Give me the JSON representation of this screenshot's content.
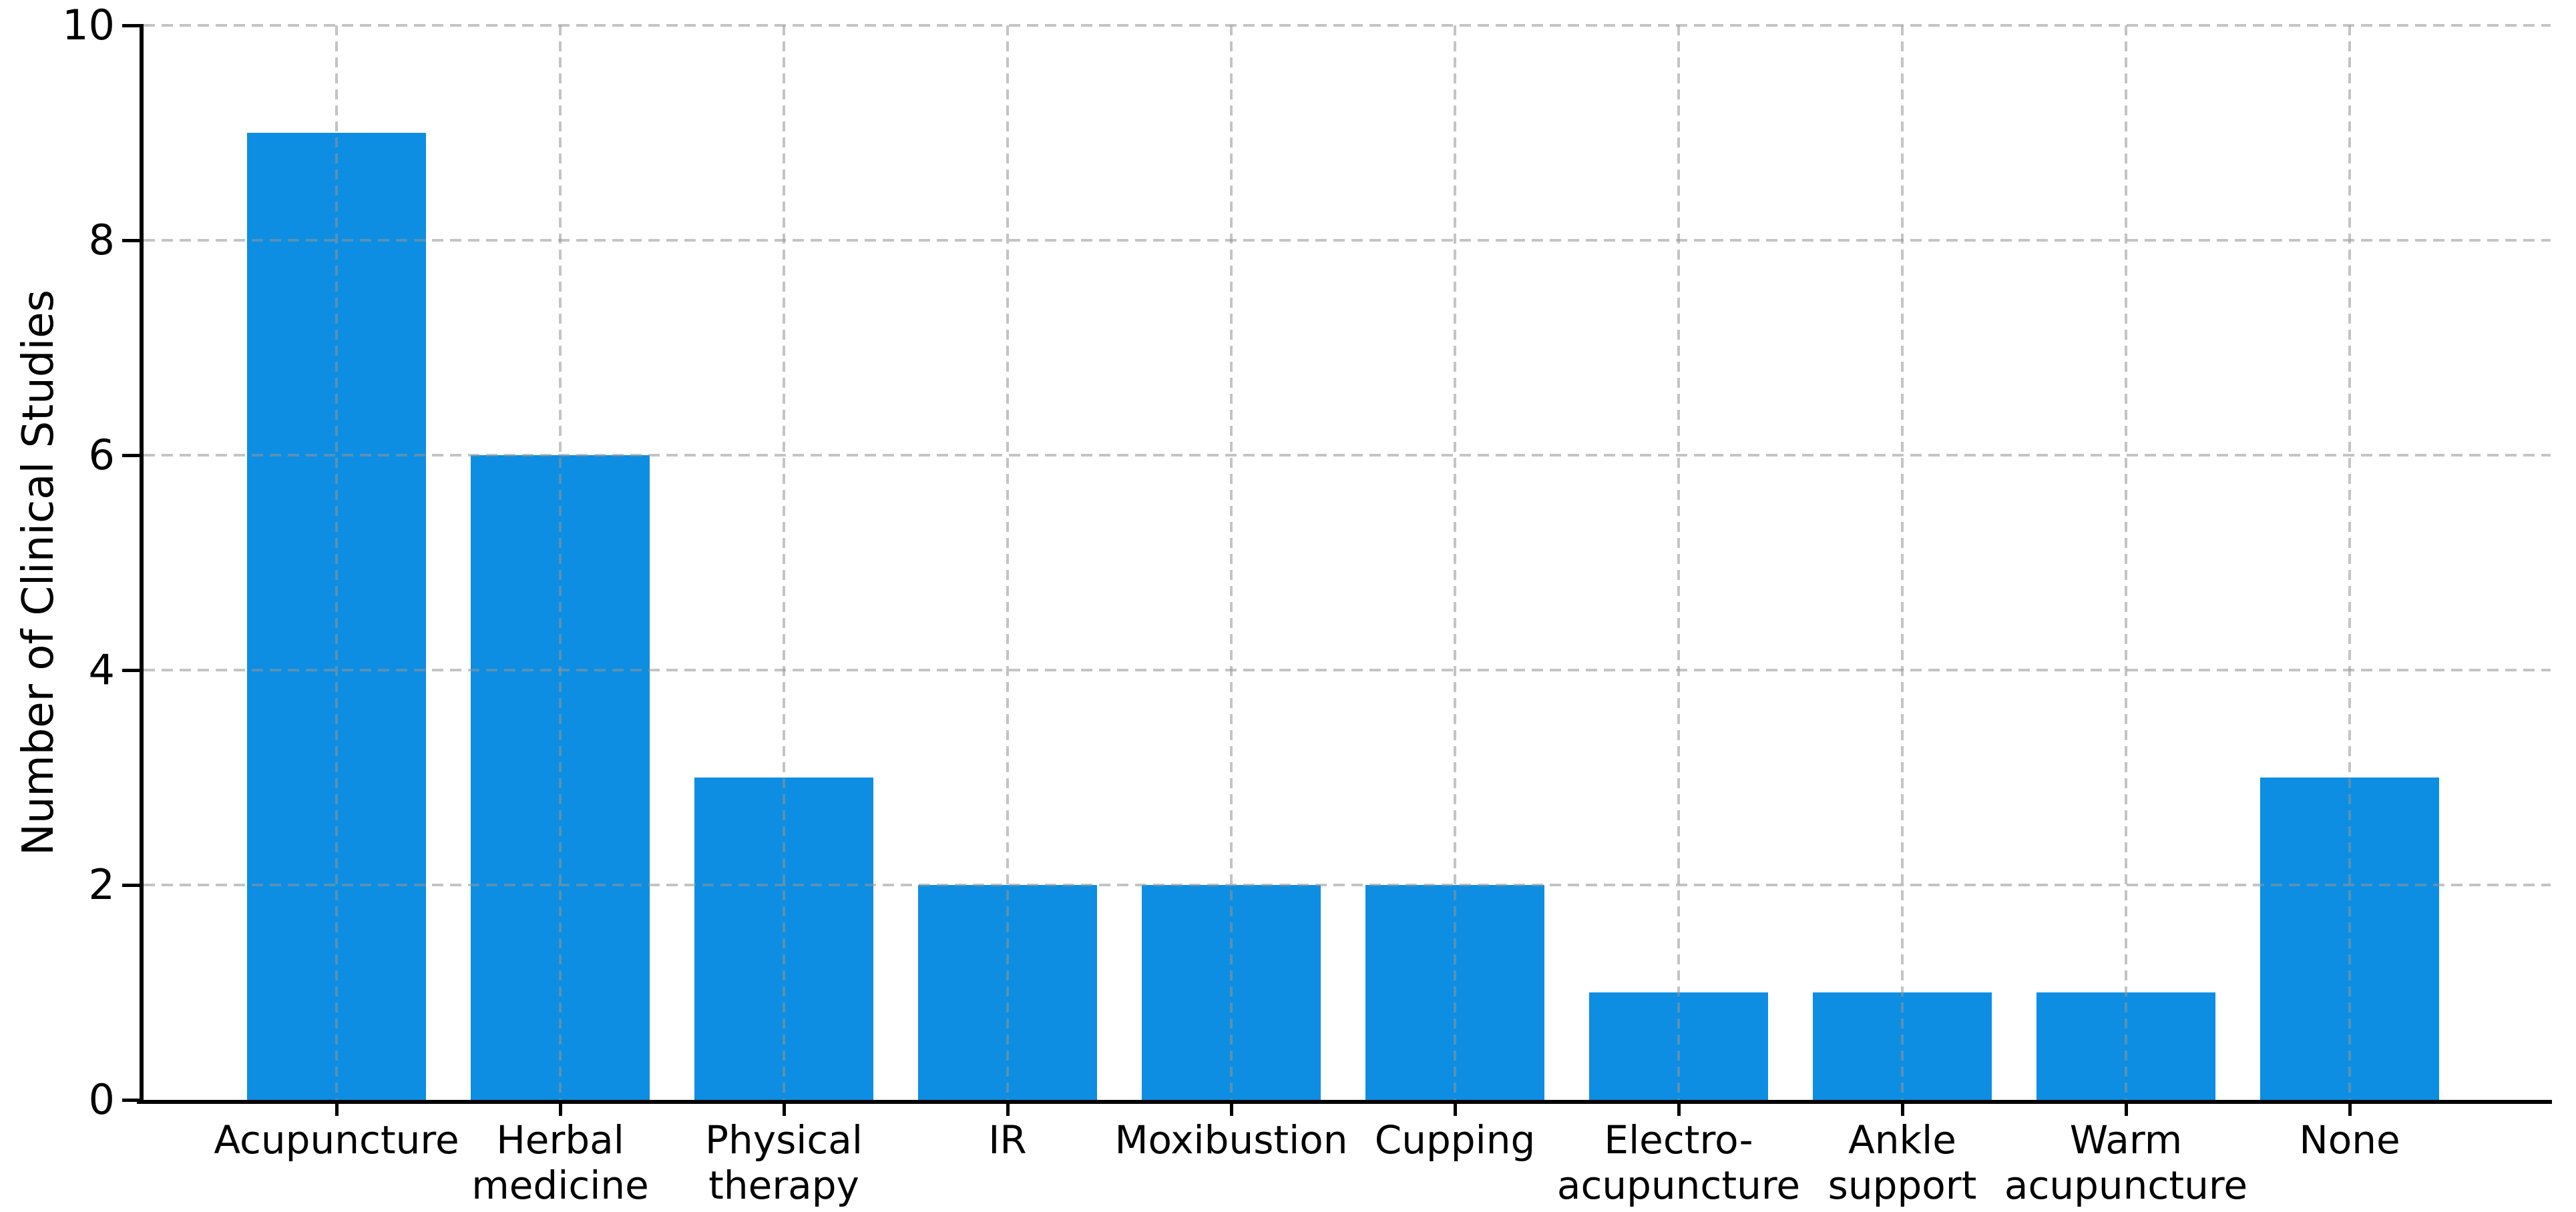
{
  "figure": {
    "background_color": "#ffffff",
    "text_color": "#000000",
    "grid_color": "#c2c2c2"
  },
  "chart_data": {
    "type": "bar",
    "title": "",
    "xlabel": "",
    "ylabel": "Number of Clinical Studies",
    "categories": [
      "Acupuncture",
      "Herbal\nmedicine",
      "Physical\ntherapy",
      "IR",
      "Moxibustion",
      "Cupping",
      "Electro-\nacupuncture",
      "Ankle\nsupport",
      "Warm\nacupuncture",
      "None"
    ],
    "values": [
      9,
      6,
      3,
      2,
      2,
      2,
      1,
      1,
      1,
      3
    ],
    "series_name": "Number of Clinical Studies",
    "bar_color": "#0d8ee2",
    "yticks": [
      0,
      2,
      4,
      6,
      8,
      10
    ],
    "ylim": [
      0,
      10
    ],
    "grid": "dashed, both axes, drawn over bars",
    "legend_position": "none"
  }
}
